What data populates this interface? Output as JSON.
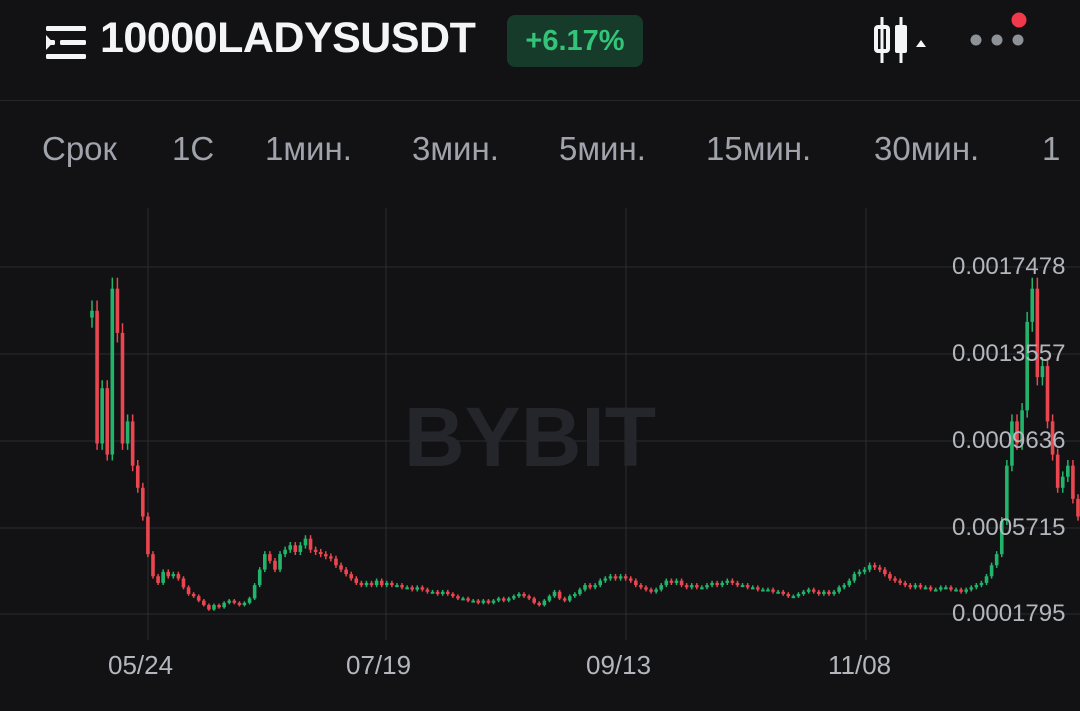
{
  "header": {
    "symbol": "10000LADYSUSDT",
    "change": "+6.17%",
    "menu_icon": "list-menu-icon",
    "chart_type_icon": "candlestick-icon",
    "more_icon": "more-dots-icon",
    "notification_color": "#f2394b"
  },
  "tabs": [
    "Срок",
    "1С",
    "1мин.",
    "3мин.",
    "5мин.",
    "15мин.",
    "30мин.",
    "1"
  ],
  "watermark": "BYBIT",
  "colors": {
    "up": "#22b46b",
    "down": "#e9464f",
    "background": "#121214"
  },
  "chart_data": {
    "type": "candlestick",
    "price_labels": [
      "0.0017478",
      "0.0013557",
      "0.0009636",
      "0.0005715",
      "0.0001795"
    ],
    "date_labels": [
      "05/24",
      "07/19",
      "09/13",
      "11/08"
    ],
    "ylim": [
      0.0001795,
      0.0017478
    ],
    "close_series": [
      0.00155,
      0.00095,
      0.0012,
      0.0009,
      0.00165,
      0.00145,
      0.00095,
      0.00105,
      0.00085,
      0.00075,
      0.00062,
      0.00045,
      0.00035,
      0.00032,
      0.00037,
      0.00035,
      0.00036,
      0.00034,
      0.0003,
      0.00027,
      0.00026,
      0.00024,
      0.00022,
      0.0002,
      0.00022,
      0.00021,
      0.00023,
      0.00024,
      0.00023,
      0.00022,
      0.00023,
      0.00025,
      0.00031,
      0.00038,
      0.00045,
      0.00042,
      0.00038,
      0.00045,
      0.00047,
      0.00049,
      0.00046,
      0.00049,
      0.00052,
      0.00047,
      0.00046,
      0.00045,
      0.00044,
      0.00043,
      0.0004,
      0.00038,
      0.00036,
      0.00034,
      0.00032,
      0.00031,
      0.00032,
      0.00031,
      0.00033,
      0.00031,
      0.00032,
      0.00031,
      0.00031,
      0.0003,
      0.0003,
      0.00029,
      0.0003,
      0.00029,
      0.00028,
      0.00028,
      0.00027,
      0.00028,
      0.00027,
      0.00026,
      0.00025,
      0.00025,
      0.00024,
      0.00024,
      0.00023,
      0.00024,
      0.00023,
      0.00024,
      0.00025,
      0.00024,
      0.00025,
      0.00026,
      0.00027,
      0.00026,
      0.00025,
      0.00023,
      0.00022,
      0.00024,
      0.00026,
      0.00028,
      0.00025,
      0.00024,
      0.00026,
      0.00027,
      0.00029,
      0.00031,
      0.0003,
      0.00031,
      0.00033,
      0.00034,
      0.00035,
      0.00034,
      0.00035,
      0.00034,
      0.00033,
      0.00031,
      0.0003,
      0.00029,
      0.00028,
      0.00029,
      0.00031,
      0.00033,
      0.00032,
      0.00033,
      0.00031,
      0.0003,
      0.00031,
      0.0003,
      0.0003,
      0.00031,
      0.00032,
      0.00031,
      0.00032,
      0.00033,
      0.00032,
      0.00031,
      0.00031,
      0.0003,
      0.0003,
      0.00029,
      0.00029,
      0.00029,
      0.00028,
      0.00028,
      0.00027,
      0.00026,
      0.00026,
      0.00027,
      0.00028,
      0.00029,
      0.00028,
      0.00027,
      0.00028,
      0.00027,
      0.00028,
      0.0003,
      0.00031,
      0.00033,
      0.00036,
      0.00037,
      0.00038,
      0.0004,
      0.00039,
      0.00038,
      0.00036,
      0.00034,
      0.00033,
      0.00032,
      0.00031,
      0.0003,
      0.00031,
      0.0003,
      0.0003,
      0.00029,
      0.00029,
      0.0003,
      0.0003,
      0.00029,
      0.00029,
      0.00028,
      0.00029,
      0.0003,
      0.00031,
      0.00032,
      0.00035,
      0.0004,
      0.00045,
      0.0006,
      0.00085,
      0.00105,
      0.00095,
      0.0011,
      0.0015,
      0.00165,
      0.00125,
      0.0013,
      0.00105,
      0.0009,
      0.00075,
      0.0008,
      0.00085,
      0.0007,
      0.00062
    ]
  }
}
